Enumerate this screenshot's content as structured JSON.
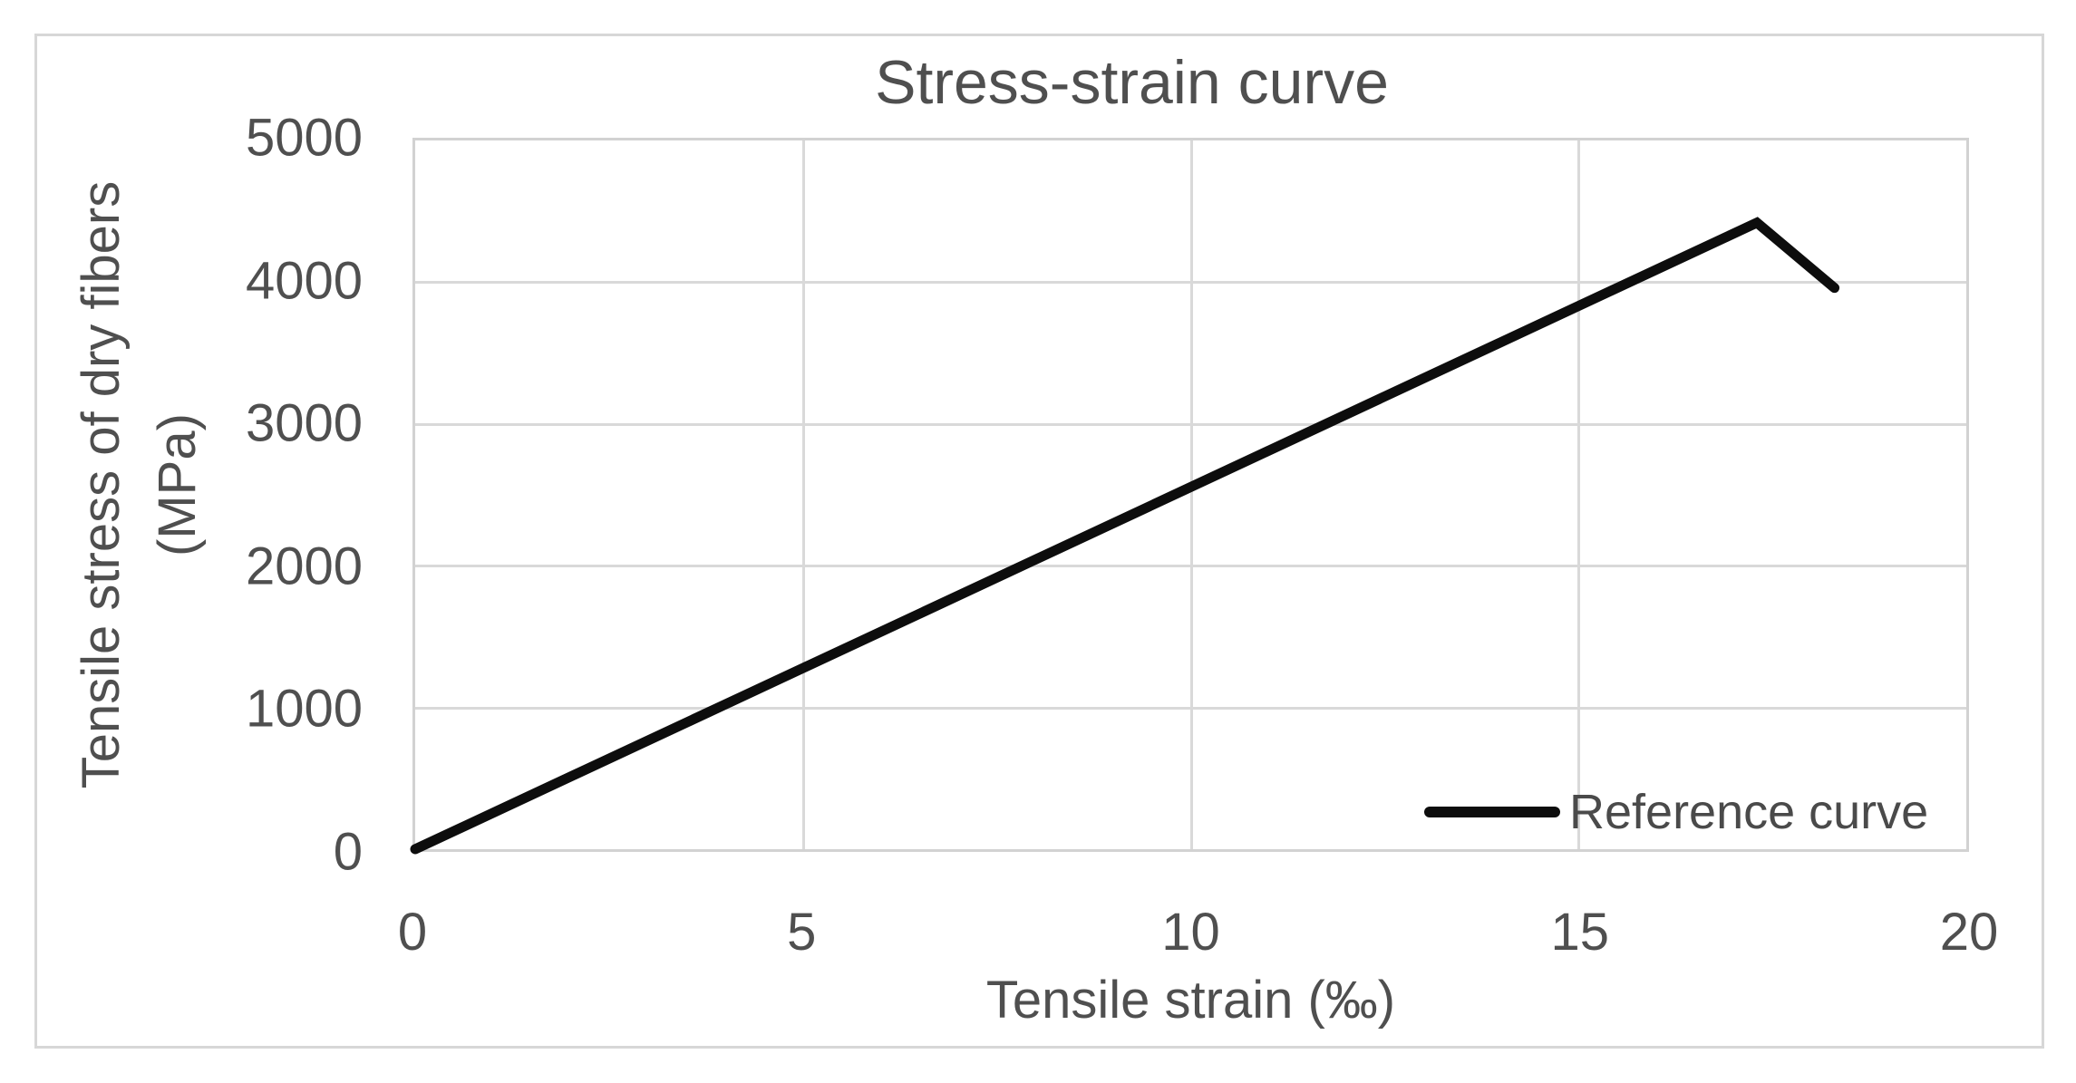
{
  "figure": {
    "border_color": "#d7d7d7",
    "background": "#ffffff"
  },
  "chart_data": {
    "type": "line",
    "title": "Stress-strain curve",
    "xlabel": "Tensile strain (‰)",
    "ylabel": "Tensile stress of dry fibers (MPa)",
    "ylabel_lines": [
      "Tensile stress of dry fibers",
      "(MPa)"
    ],
    "xlim": [
      0,
      20
    ],
    "ylim": [
      0,
      5000
    ],
    "xticks": [
      0,
      5,
      10,
      15,
      20
    ],
    "yticks": [
      0,
      1000,
      2000,
      3000,
      4000,
      5000
    ],
    "grid": true,
    "legend_position": "inside-bottom-right",
    "series": [
      {
        "name": "Reference curve",
        "color": "#0d0d0d",
        "line_width": 11,
        "points": [
          [
            0,
            0
          ],
          [
            17.3,
            4420
          ],
          [
            18.3,
            3960
          ]
        ]
      }
    ]
  },
  "colors": {
    "text": "#4f4f4f",
    "gridline": "#d9d9d9",
    "plot_border": "#d2d2d2",
    "curve": "#0d0d0d"
  }
}
